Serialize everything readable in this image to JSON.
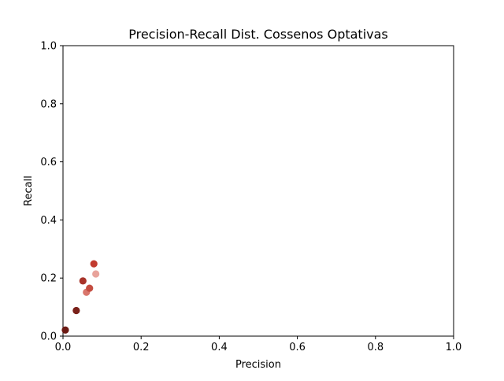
{
  "chart_data": {
    "type": "scatter",
    "title": "Precision-Recall Dist. Cossenos Optativas",
    "xlabel": "Precision",
    "ylabel": "Recall",
    "xlim": [
      0.0,
      1.0
    ],
    "ylim": [
      0.0,
      1.0
    ],
    "x_ticks": [
      "0.0",
      "0.2",
      "0.4",
      "0.6",
      "0.8",
      "1.0"
    ],
    "y_ticks": [
      "0.0",
      "0.2",
      "0.4",
      "0.6",
      "0.8",
      "1.0"
    ],
    "grid": false,
    "points": [
      {
        "x": 0.006,
        "y": 0.021,
        "color": "#6b1a14"
      },
      {
        "x": 0.034,
        "y": 0.088,
        "color": "#7a211a"
      },
      {
        "x": 0.051,
        "y": 0.19,
        "color": "#a8332a"
      },
      {
        "x": 0.06,
        "y": 0.151,
        "color": "#d9766c"
      },
      {
        "x": 0.068,
        "y": 0.165,
        "color": "#c44d41"
      },
      {
        "x": 0.079,
        "y": 0.249,
        "color": "#c23b2f"
      },
      {
        "x": 0.084,
        "y": 0.214,
        "color": "#e8a39b"
      }
    ]
  }
}
